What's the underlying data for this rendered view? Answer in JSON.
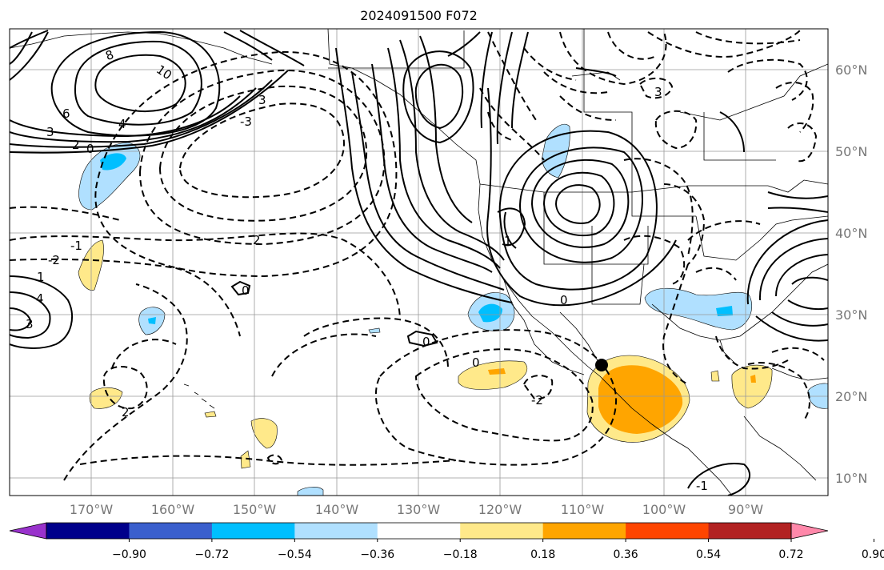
{
  "title": "2024091500 F072",
  "map": {
    "lat_labels": [
      "60°N",
      "50°N",
      "40°N",
      "30°N",
      "20°N",
      "10°N"
    ],
    "lon_labels": [
      "170°W",
      "160°W",
      "150°W",
      "140°W",
      "130°W",
      "120°W",
      "110°W",
      "100°W",
      "90°W"
    ],
    "marker": {
      "label": "point",
      "lon": -107.5,
      "lat": 24.0
    }
  },
  "colorbar": {
    "ticks": [
      "−0.90",
      "−0.72",
      "−0.54",
      "−0.36",
      "−0.18",
      "0.18",
      "0.36",
      "0.54",
      "0.72",
      "0.90"
    ],
    "colors": [
      "#9932cc",
      "#00008b",
      "#3a5fcd",
      "#00bfff",
      "#b0e0ff",
      "#ffffff",
      "#ffe98a",
      "#ffa500",
      "#ff4500",
      "#b22222",
      "#ff88aa"
    ]
  },
  "contour_labels": [
    "8",
    "10",
    "6",
    "4",
    "3",
    "2",
    "0",
    "-1",
    "-2",
    "1",
    "4",
    "3",
    "2",
    "0",
    "3",
    "-3",
    "2",
    "0",
    "1",
    "-2",
    "-1",
    "0",
    "3",
    "0"
  ]
}
